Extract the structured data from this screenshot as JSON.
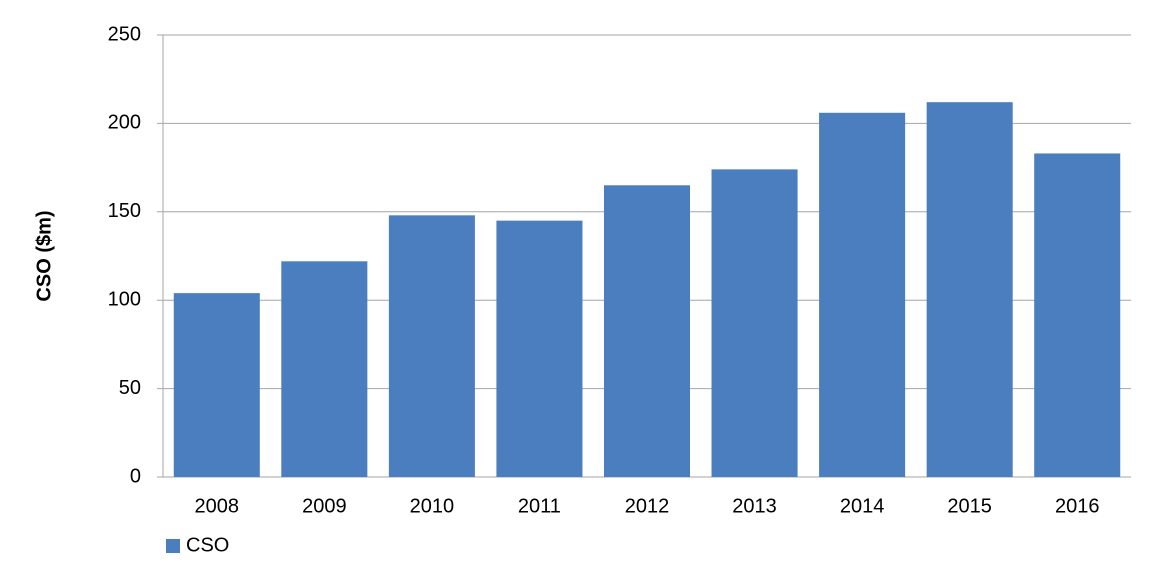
{
  "chart_data": {
    "type": "bar",
    "y_label": "CSO ($m)",
    "categories": [
      "2008",
      "2009",
      "2010",
      "2011",
      "2012",
      "2013",
      "2014",
      "2015",
      "2016"
    ],
    "series": [
      {
        "name": "CSO",
        "color": "#4a7ebf",
        "values": [
          104,
          122,
          148,
          145,
          165,
          174,
          206,
          212,
          183
        ]
      }
    ],
    "ylim": [
      0,
      250
    ],
    "yticks": [
      0,
      50,
      100,
      150,
      200,
      250
    ],
    "grid": true,
    "legend": "bottom-left"
  }
}
